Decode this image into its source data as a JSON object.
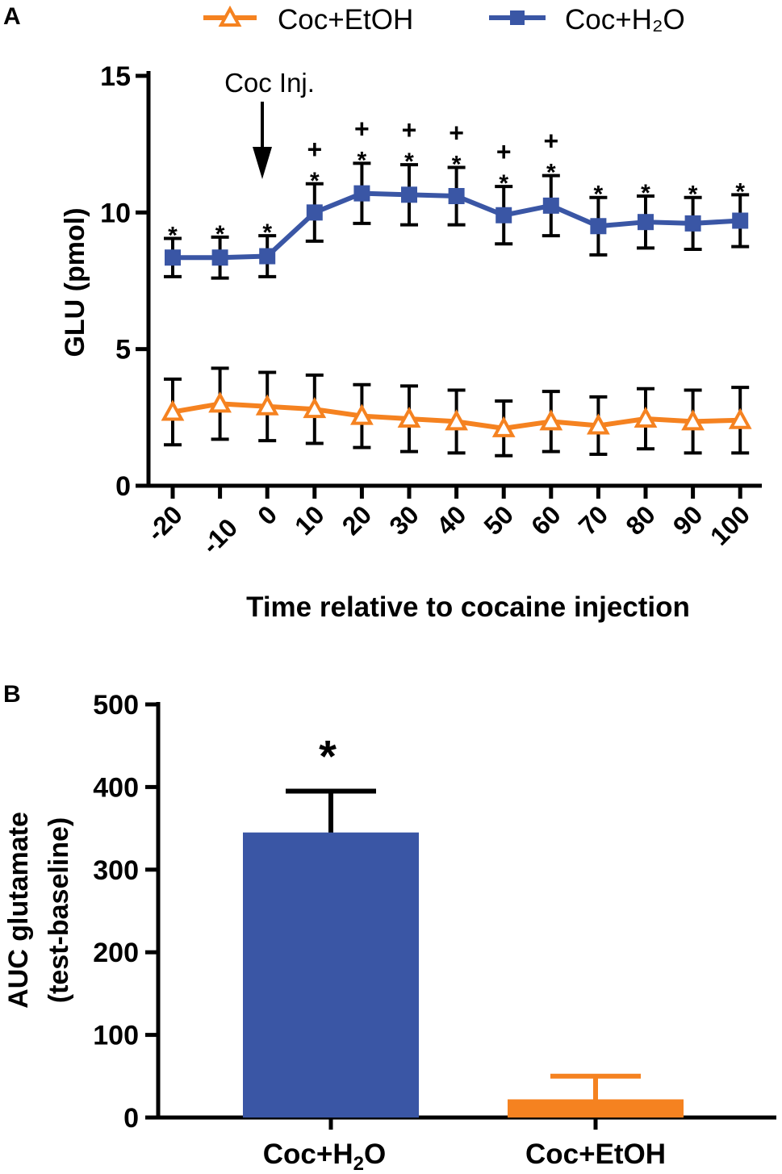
{
  "chart_data": [
    {
      "panel": "A",
      "type": "line",
      "xlabel": "Time relative to cocaine injection",
      "ylabel": "GLU (pmol)",
      "ylim": [
        0,
        15
      ],
      "yticks": [
        0,
        5,
        10,
        15
      ],
      "x": [
        -20,
        -10,
        0,
        10,
        20,
        30,
        40,
        50,
        60,
        70,
        80,
        90,
        100
      ],
      "x_tick_labels": [
        "-20",
        "-10",
        "0",
        "10",
        "20",
        "30",
        "40",
        "50",
        "60",
        "70",
        "80",
        "90",
        "100"
      ],
      "annotation": "Coc Inj.",
      "annotation_x": 0,
      "legend": [
        "Coc+EtOH",
        "Coc+H₂O"
      ],
      "series": [
        {
          "name": "Coc+EtOH",
          "color": "#f58220",
          "marker": "open-triangle",
          "values": [
            2.7,
            3.0,
            2.9,
            2.8,
            2.55,
            2.45,
            2.35,
            2.1,
            2.35,
            2.2,
            2.45,
            2.35,
            2.4
          ],
          "errors": [
            1.2,
            1.3,
            1.25,
            1.25,
            1.15,
            1.2,
            1.15,
            1.0,
            1.1,
            1.05,
            1.1,
            1.15,
            1.2
          ]
        },
        {
          "name": "Coc+H₂O",
          "color": "#3a56a5",
          "marker": "filled-square",
          "values": [
            8.35,
            8.35,
            8.4,
            10.0,
            10.7,
            10.65,
            10.6,
            9.9,
            10.25,
            9.5,
            9.65,
            9.6,
            9.7
          ],
          "errors": [
            0.7,
            0.75,
            0.75,
            1.05,
            1.1,
            1.1,
            1.05,
            1.05,
            1.1,
            1.05,
            0.95,
            0.95,
            0.95
          ]
        }
      ],
      "significance": {
        "star": [
          "*",
          "*",
          "*",
          "*",
          "*",
          "*",
          "*",
          "*",
          "*",
          "*",
          "*",
          "*",
          "*"
        ],
        "plus": [
          "",
          "",
          "",
          "+",
          "+",
          "+",
          "+",
          "+",
          "+",
          "",
          "",
          "",
          ""
        ]
      }
    },
    {
      "panel": "B",
      "type": "bar",
      "ylabel_line1": "AUC glutamate",
      "ylabel_line2": "(test-baseline)",
      "ylim": [
        0,
        500
      ],
      "yticks": [
        0,
        100,
        200,
        300,
        400,
        500
      ],
      "categories": [
        "Coc+H₂O",
        "Coc+EtOH"
      ],
      "values": [
        345,
        22
      ],
      "errors": [
        50,
        28
      ],
      "colors": [
        "#3a56a5",
        "#f58220"
      ],
      "significance": [
        "*",
        ""
      ]
    }
  ],
  "panel_labels": [
    "A",
    "B"
  ]
}
